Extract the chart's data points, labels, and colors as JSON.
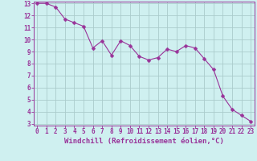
{
  "xlabel": "Windchill (Refroidissement éolien,°C)",
  "x_values": [
    0,
    1,
    2,
    3,
    4,
    5,
    6,
    7,
    8,
    9,
    10,
    11,
    12,
    13,
    14,
    15,
    16,
    17,
    18,
    19,
    20,
    21,
    22,
    23
  ],
  "y_values": [
    13.0,
    13.0,
    12.7,
    11.7,
    11.4,
    11.1,
    9.3,
    9.9,
    8.7,
    9.9,
    9.5,
    8.6,
    8.3,
    8.5,
    9.2,
    9.0,
    9.5,
    9.3,
    8.4,
    7.5,
    5.3,
    4.2,
    3.7,
    3.2
  ],
  "line_color": "#993399",
  "marker": "D",
  "marker_size": 2.5,
  "bg_color": "#cff0f0",
  "grid_color": "#aacccc",
  "text_color": "#993399",
  "ylim_min": 3,
  "ylim_max": 13,
  "xlim_min": 0,
  "xlim_max": 23,
  "yticks": [
    3,
    4,
    5,
    6,
    7,
    8,
    9,
    10,
    11,
    12,
    13
  ],
  "xticks": [
    0,
    1,
    2,
    3,
    4,
    5,
    6,
    7,
    8,
    9,
    10,
    11,
    12,
    13,
    14,
    15,
    16,
    17,
    18,
    19,
    20,
    21,
    22,
    23
  ],
  "tick_fontsize": 5.5,
  "xlabel_fontsize": 6.5,
  "font_family": "monospace"
}
